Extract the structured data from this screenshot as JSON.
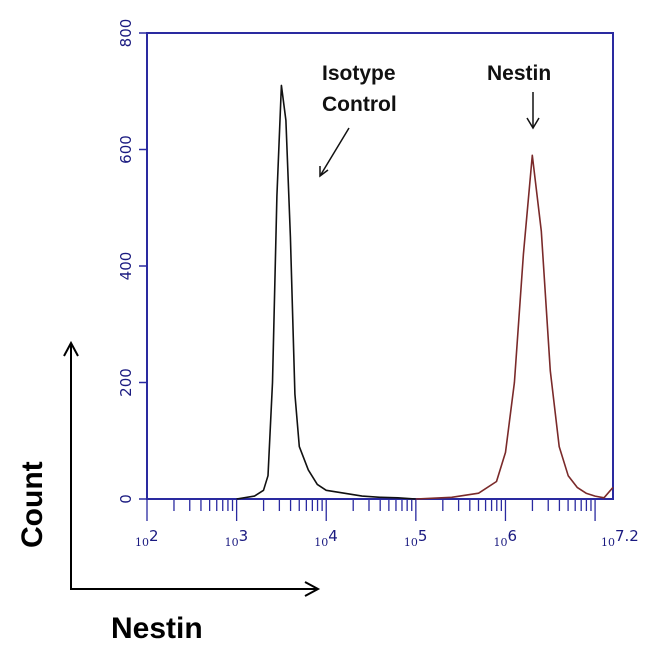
{
  "chart_data": {
    "type": "line",
    "xlabel": "Nestin",
    "ylabel": "Count",
    "x_scale": "log10",
    "xlim": [
      100,
      15848932
    ],
    "ylim": [
      0,
      800
    ],
    "y_ticks": [
      "0",
      "200",
      "400",
      "600",
      "800"
    ],
    "x_ticks": [
      {
        "base": "10",
        "exp": "2"
      },
      {
        "base": "10",
        "exp": "3"
      },
      {
        "base": "10",
        "exp": "4"
      },
      {
        "base": "10",
        "exp": "5"
      },
      {
        "base": "10",
        "exp": "6"
      },
      {
        "base": "10",
        "exp": "7.2"
      }
    ],
    "grid": false,
    "series": [
      {
        "name": "Isotype Control",
        "color": "#111111",
        "x": [
          1000,
          1585,
          1995,
          2239,
          2512,
          2818,
          3162,
          3548,
          3981,
          4467,
          5012,
          6310,
          7943,
          10000,
          15849,
          25119,
          39811,
          63096,
          100000
        ],
        "y": [
          0,
          5,
          15,
          40,
          200,
          520,
          710,
          650,
          450,
          180,
          90,
          50,
          25,
          15,
          10,
          5,
          3,
          2,
          0
        ]
      },
      {
        "name": "Nestin",
        "color": "#7a2a2a",
        "x": [
          100000,
          251189,
          501187,
          794328,
          1000000,
          1258925,
          1584893,
          1995262,
          2511886,
          3162278,
          3981072,
          5011872,
          6309573,
          7943282,
          10000000,
          12589254,
          15848932
        ],
        "y": [
          0,
          3,
          10,
          30,
          80,
          200,
          420,
          590,
          460,
          220,
          90,
          40,
          20,
          10,
          5,
          2,
          20
        ]
      }
    ],
    "annotations": [
      {
        "lines": [
          "Isotype",
          "Control"
        ],
        "target": "Isotype Control"
      },
      {
        "lines": [
          "Nestin"
        ],
        "target": "Nestin"
      }
    ]
  }
}
